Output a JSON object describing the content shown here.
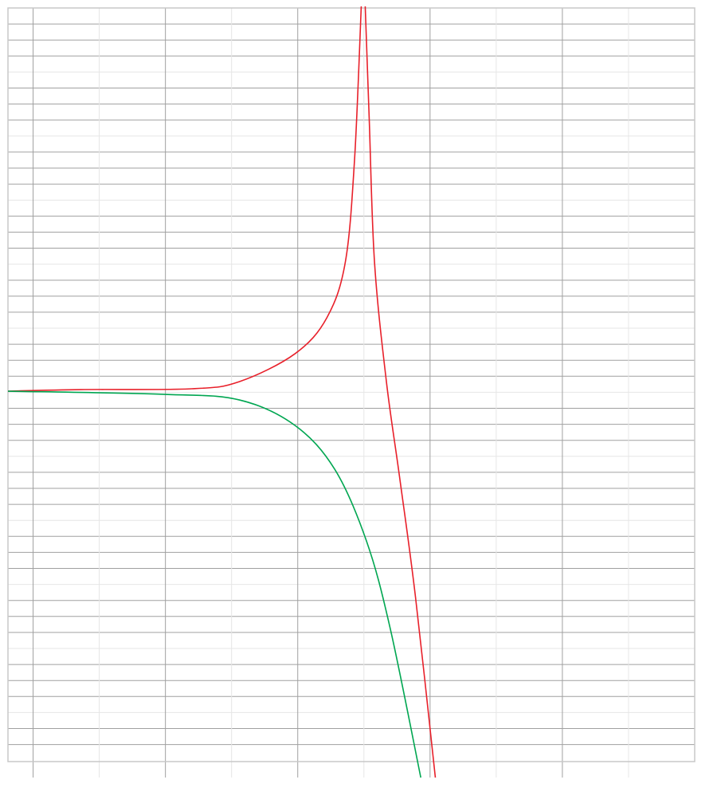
{
  "chart_data": {
    "type": "line",
    "title": "",
    "xlabel": "",
    "ylabel": "",
    "xlim": [
      -0.19,
      5.0
    ],
    "ylim": [
      -23.2,
      24.0
    ],
    "grid": true,
    "legend": "none",
    "series": [
      {
        "color": "#e8202a",
        "segments": [
          [
            [
              -0.19,
              0
            ],
            [
              0.36,
              0.1
            ],
            [
              1.2,
              0.15
            ],
            [
              1.56,
              0.6
            ],
            [
              1.98,
              2.35
            ],
            [
              2.22,
              4.6
            ],
            [
              2.36,
              8.1
            ],
            [
              2.43,
              14.6
            ],
            [
              2.48,
              24.1
            ]
          ],
          [
            [
              2.51,
              24.1
            ],
            [
              2.54,
              17.1
            ],
            [
              2.58,
              8.1
            ],
            [
              2.67,
              0.6
            ],
            [
              2.77,
              -5.4
            ],
            [
              2.89,
              -12.9
            ],
            [
              3.04,
              -24.2
            ]
          ]
        ]
      },
      {
        "color": "#00a651",
        "segments": [
          [
            [
              -0.19,
              0
            ],
            [
              1.0,
              -0.2
            ],
            [
              1.56,
              -0.55
            ],
            [
              1.98,
              -2.15
            ],
            [
              2.28,
              -4.9
            ],
            [
              2.52,
              -9.4
            ],
            [
              2.7,
              -14.9
            ],
            [
              2.93,
              -24.2
            ]
          ]
        ]
      }
    ]
  }
}
